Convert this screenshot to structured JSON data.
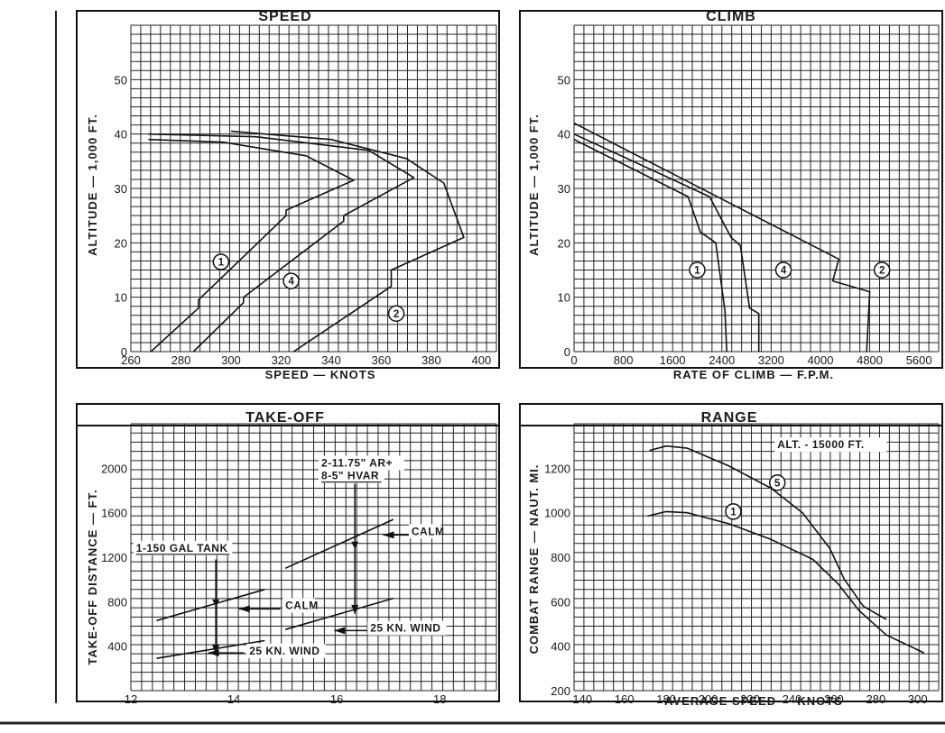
{
  "chart_data": [
    {
      "id": "speed",
      "type": "line",
      "title": "SPEED",
      "xlabel": "SPEED — KNOTS",
      "ylabel": "ALTITUDE — 1,000 FT.",
      "x_ticks": [
        "260",
        "280",
        "300",
        "320",
        "340",
        "360",
        "380",
        "400"
      ],
      "y_ticks": [
        "0",
        "10",
        "20",
        "30",
        "40",
        "50"
      ],
      "xlim": [
        260,
        406
      ],
      "ylim": [
        0,
        60
      ],
      "grid": true,
      "series": [
        {
          "name": "1",
          "points": [
            [
              268,
              0
            ],
            [
              287,
              8
            ],
            [
              287,
              9.5
            ],
            [
              322,
              25
            ],
            [
              322,
              26
            ],
            [
              349,
              31.5
            ],
            [
              330,
              36
            ],
            [
              297,
              38.5
            ],
            [
              267,
              39
            ]
          ]
        },
        {
          "name": "4",
          "points": [
            [
              285,
              0
            ],
            [
              305,
              9
            ],
            [
              305,
              10
            ],
            [
              345,
              24
            ],
            [
              345,
              25
            ],
            [
              373,
              32
            ],
            [
              355,
              37
            ],
            [
              310,
              39.5
            ],
            [
              267,
              40
            ]
          ]
        },
        {
          "name": "2",
          "points": [
            [
              325,
              0
            ],
            [
              364,
              12
            ],
            [
              364,
              15
            ],
            [
              393,
              21
            ],
            [
              385,
              31
            ],
            [
              370,
              35.5
            ],
            [
              340,
              39
            ],
            [
              300,
              40.5
            ]
          ]
        }
      ],
      "markers": [
        {
          "text": "1",
          "x": 296,
          "y": 16.5
        },
        {
          "text": "4",
          "x": 324,
          "y": 13
        },
        {
          "text": "2",
          "x": 366,
          "y": 7
        }
      ]
    },
    {
      "id": "climb",
      "type": "line",
      "title": "CLIMB",
      "xlabel": "RATE OF CLIMB — F.P.M.",
      "ylabel": "ALTITUDE — 1,000 FT.",
      "x_ticks": [
        "0",
        "800",
        "1600",
        "2400",
        "3200",
        "4000",
        "4800",
        "5600"
      ],
      "y_ticks": [
        "0",
        "10",
        "20",
        "30",
        "40",
        "50"
      ],
      "xlim": [
        0,
        5920
      ],
      "ylim": [
        0,
        60
      ],
      "grid": true,
      "series": [
        {
          "name": "1",
          "points": [
            [
              0,
              39
            ],
            [
              1850,
              28.5
            ],
            [
              2050,
              22
            ],
            [
              2300,
              20
            ],
            [
              2450,
              7.5
            ],
            [
              2480,
              0
            ]
          ]
        },
        {
          "name": "4",
          "points": [
            [
              0,
              40
            ],
            [
              2200,
              28.5
            ],
            [
              2550,
              21
            ],
            [
              2700,
              19.5
            ],
            [
              2850,
              8
            ],
            [
              3000,
              7
            ],
            [
              3000,
              0
            ]
          ]
        },
        {
          "name": "2",
          "points": [
            [
              0,
              42
            ],
            [
              4300,
              17
            ],
            [
              4200,
              13
            ],
            [
              4800,
              11
            ],
            [
              4750,
              0
            ]
          ]
        }
      ],
      "markers": [
        {
          "text": "1",
          "x": 2000,
          "y": 15
        },
        {
          "text": "4",
          "x": 3400,
          "y": 15
        },
        {
          "text": "2",
          "x": 5000,
          "y": 15
        }
      ]
    },
    {
      "id": "takeoff",
      "type": "line",
      "title": "TAKE-OFF",
      "xlabel": "",
      "ylabel": "TAKE-OFF DISTANCE — FT.",
      "x_ticks": [
        "12",
        "14",
        "16",
        "18"
      ],
      "y_ticks": [
        "400",
        "800",
        "1200",
        "1600",
        "2000"
      ],
      "xlim": [
        12,
        19.1
      ],
      "ylim": [
        0,
        2400
      ],
      "grid": true,
      "series": [
        {
          "name": "1-150 GAL TANK · CALM",
          "points": [
            [
              12.5,
              630
            ],
            [
              14.6,
              910
            ]
          ]
        },
        {
          "name": "1-150 GAL TANK · 25 KN. WIND",
          "points": [
            [
              12.5,
              290
            ],
            [
              14.6,
              450
            ]
          ]
        },
        {
          "name": "2-11.75\" AR + 8-5\" HVAR · CALM",
          "points": [
            [
              15,
              1100
            ],
            [
              17.1,
              1540
            ]
          ]
        },
        {
          "name": "2-11.75\" AR + 8-5\" HVAR · 25 KN. WIND",
          "points": [
            [
              15,
              550
            ],
            [
              17.1,
              830
            ]
          ]
        }
      ],
      "guides": [
        {
          "x": 13.65,
          "y_from": 1180,
          "y_to": 330
        },
        {
          "x": 16.35,
          "y_from": 1860,
          "y_to": 690
        }
      ],
      "annotations": [
        {
          "text": "1-150 GAL TANK",
          "x": 12.1,
          "y": 1250
        },
        {
          "text": "2-11.75\" AR+",
          "x": 15.7,
          "y": 2015
        },
        {
          "text": "8-5\" HVAR",
          "x": 15.7,
          "y": 1900
        },
        {
          "text": "CALM",
          "x": 17.45,
          "y": 1400
        },
        {
          "text": "CALM",
          "x": 15.0,
          "y": 735
        },
        {
          "text": "25 KN. WIND",
          "x": 16.65,
          "y": 530
        },
        {
          "text": "25 KN. WIND",
          "x": 14.3,
          "y": 325
        }
      ],
      "arrows": [
        {
          "from": [
            17.4,
            1400
          ],
          "to": [
            16.9,
            1400
          ]
        },
        {
          "from": [
            14.9,
            735
          ],
          "to": [
            14.1,
            735
          ]
        },
        {
          "from": [
            16.6,
            540
          ],
          "to": [
            15.95,
            540
          ]
        },
        {
          "from": [
            14.2,
            340
          ],
          "to": [
            13.5,
            340
          ]
        }
      ]
    },
    {
      "id": "range",
      "type": "line",
      "title": "RANGE",
      "xlabel": "AVERAGE SPEED — KNOTS",
      "ylabel": "COMBAT RANGE — NAUT. MI.",
      "x_ticks": [
        "140",
        "160",
        "180",
        "200",
        "220",
        "240",
        "260",
        "280",
        "300"
      ],
      "y_ticks": [
        "200",
        "400",
        "600",
        "800",
        "1000",
        "1200"
      ],
      "xlim": [
        136,
        310
      ],
      "ylim": [
        200,
        1400
      ],
      "grid": true,
      "series": [
        {
          "name": "1",
          "points": [
            [
              171,
              985
            ],
            [
              180,
              1005
            ],
            [
              190,
              1000
            ],
            [
              210,
              950
            ],
            [
              230,
              880
            ],
            [
              250,
              790
            ],
            [
              262,
              680
            ],
            [
              272,
              560
            ],
            [
              285,
              450
            ],
            [
              303,
              370
            ]
          ]
        },
        {
          "name": "5",
          "points": [
            [
              172,
              1280
            ],
            [
              180,
              1300
            ],
            [
              190,
              1290
            ],
            [
              210,
              1210
            ],
            [
              230,
              1110
            ],
            [
              245,
              1000
            ],
            [
              258,
              840
            ],
            [
              265,
              700
            ],
            [
              274,
              580
            ],
            [
              285,
              520
            ]
          ]
        }
      ],
      "markers": [
        {
          "text": "1",
          "x": 212,
          "y": 1005
        },
        {
          "text": "5",
          "x": 233,
          "y": 1135
        }
      ],
      "annotations": [
        {
          "text": "ALT. - 15000 FT.",
          "x": 233,
          "y": 1290
        }
      ]
    }
  ]
}
